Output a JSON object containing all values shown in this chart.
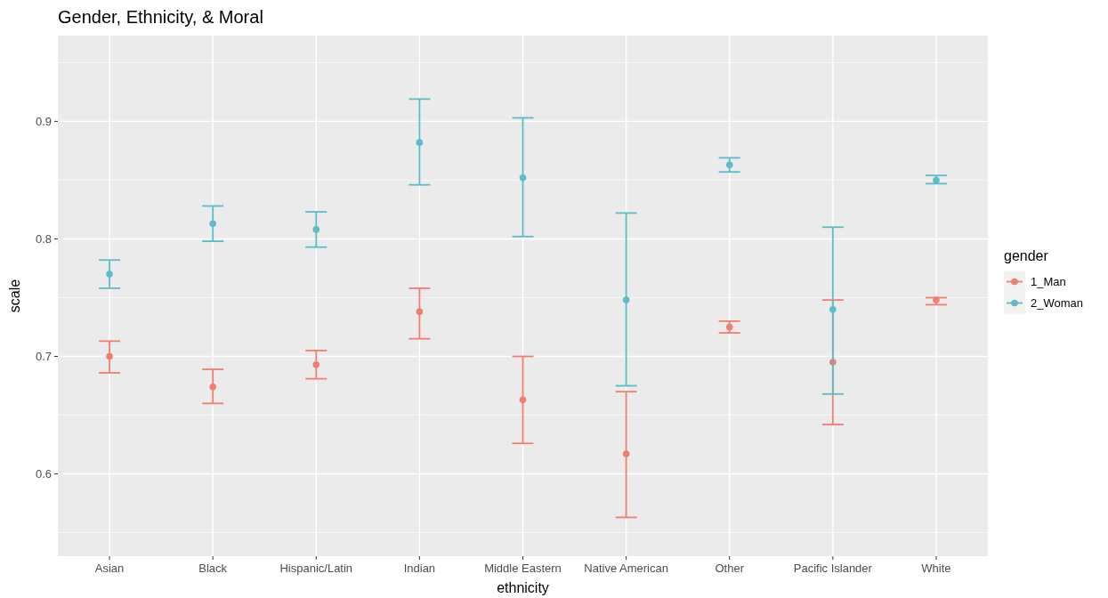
{
  "chart_data": {
    "type": "scatter",
    "title": "Gender, Ethnicity, & Moral",
    "xlabel": "ethnicity",
    "ylabel": "scale",
    "legend_title": "gender",
    "categories": [
      "Asian",
      "Black",
      "Hispanic/Latin",
      "Indian",
      "Middle Eastern",
      "Native American",
      "Other",
      "Pacific Islander",
      "White"
    ],
    "series": [
      {
        "name": "1_Man",
        "color": "#f07f72",
        "values": [
          0.7,
          0.674,
          0.693,
          0.738,
          0.663,
          0.617,
          0.725,
          0.695,
          0.748
        ],
        "errors": [
          [
            0.686,
            0.713
          ],
          [
            0.66,
            0.689
          ],
          [
            0.681,
            0.705
          ],
          [
            0.715,
            0.758
          ],
          [
            0.626,
            0.7
          ],
          [
            0.563,
            0.67
          ],
          [
            0.72,
            0.73
          ],
          [
            0.642,
            0.748
          ],
          [
            0.744,
            0.75
          ]
        ]
      },
      {
        "name": "2_Woman",
        "color": "#5bbdc8",
        "values": [
          0.77,
          0.813,
          0.808,
          0.882,
          0.852,
          0.748,
          0.863,
          0.74,
          0.85
        ],
        "errors": [
          [
            0.758,
            0.782
          ],
          [
            0.798,
            0.828
          ],
          [
            0.793,
            0.823
          ],
          [
            0.846,
            0.919
          ],
          [
            0.802,
            0.903
          ],
          [
            0.675,
            0.822
          ],
          [
            0.857,
            0.869
          ],
          [
            0.668,
            0.81
          ],
          [
            0.847,
            0.854
          ]
        ]
      }
    ],
    "ylim": [
      0.53,
      0.973
    ],
    "yticks": [
      0.6,
      0.7,
      0.8,
      0.9
    ],
    "grid": true,
    "legend": "right",
    "marker": "circle"
  }
}
